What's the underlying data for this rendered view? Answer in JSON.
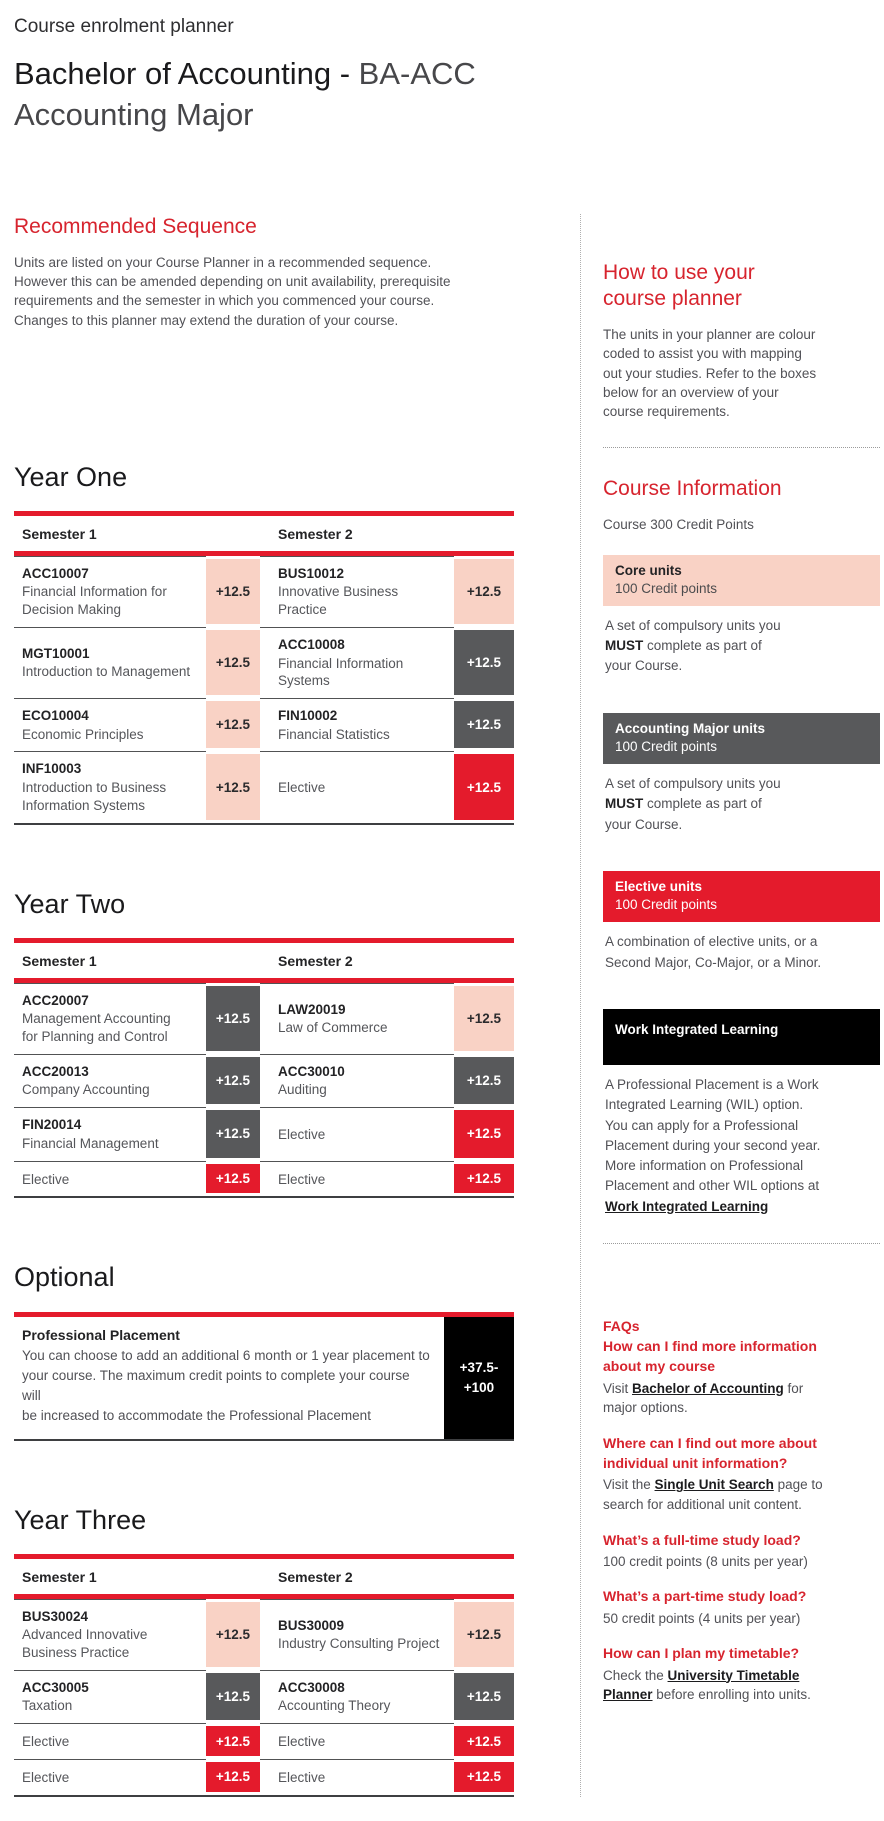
{
  "colors": {
    "accent": "#d7242e",
    "core": "#f9d2c5",
    "major": "#58595b",
    "elective": "#e41b2c",
    "wil": "#000000"
  },
  "header": {
    "eyebrow": "Course enrolment planner",
    "name": "Bachelor of Accounting -",
    "code": "BA-ACC",
    "major": "Accounting Major"
  },
  "recommended": {
    "heading": "Recommended Sequence",
    "body": "Units are listed on your Course Planner in a recommended sequence.\nHowever this can be amended depending on unit availability, prerequisite\nrequirements and the semester in which you commenced your course.\nChanges to this planner may extend the duration of your course."
  },
  "years": [
    {
      "heading": "Year One",
      "col_headers": [
        "Semester 1",
        "Semester 2"
      ],
      "rows": [
        {
          "left": {
            "code": "ACC10007",
            "name": "Financial Information for\nDecision Making",
            "credit": "+12.5",
            "type": "core"
          },
          "right": {
            "code": "BUS10012",
            "name": "Innovative Business Practice",
            "credit": "+12.5",
            "type": "core"
          }
        },
        {
          "left": {
            "code": "MGT10001",
            "name": "Introduction to Management",
            "credit": "+12.5",
            "type": "core"
          },
          "right": {
            "code": "ACC10008",
            "name": "Financial Information\nSystems",
            "credit": "+12.5",
            "type": "major"
          }
        },
        {
          "left": {
            "code": "ECO10004",
            "name": "Economic Principles",
            "credit": "+12.5",
            "type": "core"
          },
          "right": {
            "code": "FIN10002",
            "name": "Financial Statistics",
            "credit": "+12.5",
            "type": "major"
          }
        },
        {
          "left": {
            "code": "INF10003",
            "name": "Introduction to Business\nInformation Systems",
            "credit": "+12.5",
            "type": "core"
          },
          "right": {
            "code": "",
            "name": "Elective",
            "credit": "+12.5",
            "type": "elective"
          }
        }
      ]
    },
    {
      "heading": "Year Two",
      "col_headers": [
        "Semester 1",
        "Semester 2"
      ],
      "rows": [
        {
          "left": {
            "code": "ACC20007",
            "name": "Management Accounting\nfor Planning and Control",
            "credit": "+12.5",
            "type": "major"
          },
          "right": {
            "code": "LAW20019",
            "name": "Law of Commerce",
            "credit": "+12.5",
            "type": "core"
          }
        },
        {
          "left": {
            "code": "ACC20013",
            "name": "Company Accounting",
            "credit": "+12.5",
            "type": "major"
          },
          "right": {
            "code": "ACC30010",
            "name": "Auditing",
            "credit": "+12.5",
            "type": "major"
          }
        },
        {
          "left": {
            "code": "FIN20014",
            "name": "Financial Management",
            "credit": "+12.5",
            "type": "major"
          },
          "right": {
            "code": "",
            "name": "Elective",
            "credit": "+12.5",
            "type": "elective"
          }
        },
        {
          "left": {
            "code": "",
            "name": "Elective",
            "credit": "+12.5",
            "type": "elective"
          },
          "right": {
            "code": "",
            "name": "Elective",
            "credit": "+12.5",
            "type": "elective"
          }
        }
      ]
    },
    {
      "heading": "Year Three",
      "col_headers": [
        "Semester 1",
        "Semester 2"
      ],
      "rows": [
        {
          "left": {
            "code": "BUS30024",
            "name": "Advanced Innovative\nBusiness Practice",
            "credit": "+12.5",
            "type": "core"
          },
          "right": {
            "code": "BUS30009",
            "name": "Industry Consulting Project",
            "credit": "+12.5",
            "type": "core"
          }
        },
        {
          "left": {
            "code": "ACC30005",
            "name": "Taxation",
            "credit": "+12.5",
            "type": "major"
          },
          "right": {
            "code": "ACC30008",
            "name": "Accounting Theory",
            "credit": "+12.5",
            "type": "major"
          }
        },
        {
          "left": {
            "code": "",
            "name": "Elective",
            "credit": "+12.5",
            "type": "elective"
          },
          "right": {
            "code": "",
            "name": "Elective",
            "credit": "+12.5",
            "type": "elective"
          }
        },
        {
          "left": {
            "code": "",
            "name": "Elective",
            "credit": "+12.5",
            "type": "elective"
          },
          "right": {
            "code": "",
            "name": "Elective",
            "credit": "+12.5",
            "type": "elective"
          }
        }
      ]
    }
  ],
  "optional": {
    "heading": "Optional",
    "title": "Professional Placement",
    "body": "You can choose to add an additional 6 month or 1 year placement to\nyour course. The maximum credit points to complete your course will\nbe increased to accommodate the Professional Placement",
    "credit_lines": [
      "+37.5-",
      "+100"
    ],
    "type": "wil"
  },
  "sidebar": {
    "how_to": {
      "heading": "How to use your\ncourse planner",
      "body": "The units in your planner are colour\ncoded to assist you with mapping\nout your studies. Refer to the boxes\nbelow for an overview of your\ncourse requirements."
    },
    "course_info": {
      "heading": "Course Information",
      "subtitle": "Course 300 Credit Points"
    },
    "legend": [
      {
        "title": "Core units",
        "points": "100 Credit points",
        "type": "core",
        "desc_pre": "A set of compulsory units you\n",
        "desc_bold": "MUST",
        "desc_post": " complete as part of\nyour Course.",
        "link": ""
      },
      {
        "title": "Accounting Major units",
        "points": "100 Credit points",
        "type": "major",
        "desc_pre": "A set of compulsory units you\n",
        "desc_bold": "MUST",
        "desc_post": " complete as part of\nyour Course.",
        "link": ""
      },
      {
        "title": "Elective units",
        "points": "100 Credit points",
        "type": "elective",
        "desc_pre": "A combination of elective units, or a\nSecond Major, Co-Major,  or a Minor.",
        "desc_bold": "",
        "desc_post": "",
        "link": ""
      },
      {
        "title": "Work Integrated Learning",
        "points": "",
        "type": "wil",
        "desc_pre": "A Professional Placement is a Work\nIntegrated Learning (WIL) option.\nYou can apply for a Professional\nPlacement during your second year.\nMore information on Professional\nPlacement and other WIL options at\n",
        "desc_bold": "",
        "desc_post": "",
        "link": "Work Integrated Learning"
      }
    ],
    "faqs": {
      "title": "FAQs",
      "items": [
        {
          "q": "How can I find more information\nabout my course",
          "a_pre": "Visit ",
          "link": "Bachelor of Accounting",
          "a_post": " for\nmajor options."
        },
        {
          "q": "Where can I find out more about\nindividual unit information?",
          "a_pre": "Visit the ",
          "link": "Single Unit Search",
          "a_post": " page to\nsearch for additional unit content."
        },
        {
          "q": "What’s a full-time study load?",
          "a_pre": "100 credit points (8 units per year)",
          "link": "",
          "a_post": ""
        },
        {
          "q": "What’s a part-time study load?",
          "a_pre": "50 credit points (4 units per year)",
          "link": "",
          "a_post": ""
        },
        {
          "q": "How can I plan my timetable?",
          "a_pre": "Check the ",
          "link": "University Timetable\nPlanner",
          "a_post": " before enrolling into units."
        }
      ]
    }
  }
}
